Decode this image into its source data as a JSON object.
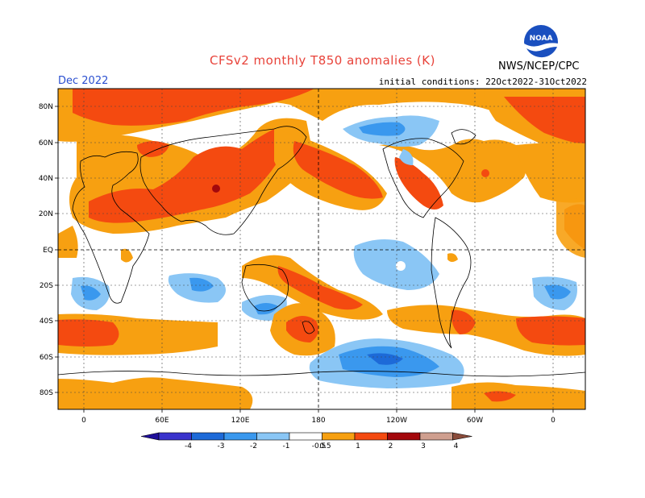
{
  "title": "CFSv2 monthly T850 anomalies (K)",
  "month": "Dec 2022",
  "initial_conditions": "initial conditions: 22Oct2022-31Oct2022",
  "agency": "NWS/NCEP/CPC",
  "logo_text": "NOAA",
  "lat_labels": [
    "80N",
    "60N",
    "40N",
    "20N",
    "EQ",
    "20S",
    "40S",
    "60S",
    "80S"
  ],
  "lon_labels": [
    "0",
    "60E",
    "120E",
    "180",
    "120W",
    "60W",
    "0"
  ],
  "colorbar": {
    "labels": [
      "-4",
      "-3",
      "-2",
      "-1",
      "-0.5",
      "0.5",
      "1",
      "2",
      "3",
      "4"
    ],
    "colors": [
      "#1f0f9a",
      "#3a33cc",
      "#1d6ad8",
      "#3a98ee",
      "#8ac6f5",
      "#ffffff",
      "#f7a011",
      "#f44a10",
      "#a3080c",
      "#cf9f8f",
      "#8a4b3a"
    ]
  }
}
